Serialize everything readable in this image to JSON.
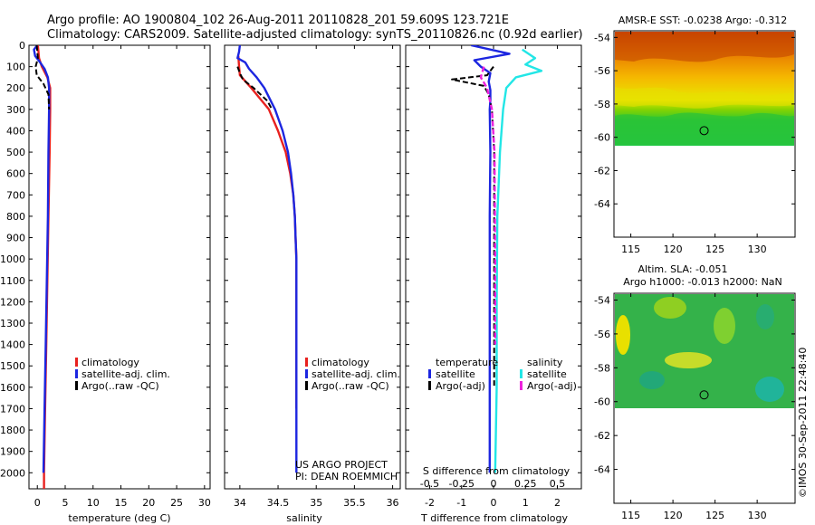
{
  "figure": {
    "title_line1": "Argo profile: AO 1900804_102 26-Aug-2011 20110828_201 59.609S 123.721E",
    "title_line2": "Climatology: CARS2009. Satellite-adjusted climatology: synTS_20110826.nc (0.92d earlier)",
    "credit": "US ARGO PROJECT",
    "pi": "PI: DEAN ROEMMICH",
    "side_label": "©IMOS 30-Sep-2011 22:48:40"
  },
  "colors": {
    "climatology": "#e8211f",
    "satellite": "#1c26e0",
    "argo": "#000000",
    "satellite_s": "#22e6e6",
    "argo_s": "#ee22dd"
  },
  "chart_data": [
    {
      "type": "line",
      "panel": "temperature",
      "xlabel": "temperature (deg C)",
      "xlim": [
        -1.5,
        31
      ],
      "xticks": [
        "0",
        "5",
        "10",
        "15",
        "20",
        "25",
        "30"
      ],
      "ylim": [
        2075,
        0
      ],
      "yticks": [
        "0",
        "100",
        "200",
        "300",
        "400",
        "500",
        "600",
        "700",
        "800",
        "900",
        "1000",
        "1100",
        "1200",
        "1300",
        "1400",
        "1500",
        "1600",
        "1700",
        "1800",
        "1900",
        "2000"
      ],
      "legend": [
        "climatology",
        "satellite-adj. clim.",
        "Argo(..raw -QC)"
      ],
      "series": [
        {
          "name": "climatology",
          "depth": [
            0,
            60,
            100,
            150,
            200,
            300,
            500,
            800,
            1100,
            1400,
            1700,
            2000,
            2075
          ],
          "values": [
            0.1,
            0.3,
            0.8,
            1.8,
            2.3,
            2.3,
            2.2,
            2.0,
            1.8,
            1.6,
            1.4,
            1.2,
            1.2
          ]
        },
        {
          "name": "satellite-adj. clim.",
          "depth": [
            0,
            20,
            50,
            80,
            110,
            150,
            200,
            300,
            500,
            800,
            1100,
            1400,
            1700,
            2000
          ],
          "values": [
            0.0,
            -0.6,
            -0.4,
            0.5,
            1.3,
            1.9,
            2.1,
            2.1,
            2.0,
            1.9,
            1.7,
            1.5,
            1.3,
            1.1
          ]
        },
        {
          "name": "Argo(..raw -QC)",
          "depth": [
            0,
            60,
            100,
            140,
            180,
            230,
            300
          ],
          "values": [
            -0.1,
            0.1,
            -0.3,
            -0.1,
            1.1,
            2.0,
            2.1
          ]
        }
      ]
    },
    {
      "type": "line",
      "panel": "salinity",
      "xlabel": "salinity",
      "xlim": [
        33.8,
        36.1
      ],
      "xticks": [
        "34",
        "34.5",
        "35",
        "35.5",
        "36"
      ],
      "ylim": [
        2075,
        0
      ],
      "legend": [
        "climatology",
        "satellite-adj. clim.",
        "Argo(..raw -QC)"
      ],
      "series": [
        {
          "name": "climatology",
          "depth": [
            50,
            100,
            140,
            200,
            300,
            400,
            500,
            600,
            700,
            800,
            900,
            1000,
            1200,
            1500,
            1700
          ],
          "values": [
            33.98,
            33.99,
            34.0,
            34.15,
            34.38,
            34.5,
            34.6,
            34.66,
            34.7,
            34.72,
            34.73,
            34.74,
            34.74,
            34.74,
            34.74
          ]
        },
        {
          "name": "satellite-adj. clim.",
          "depth": [
            0,
            30,
            60,
            80,
            110,
            150,
            200,
            300,
            400,
            500,
            600,
            700,
            800,
            900,
            1000,
            1200,
            1500,
            1800,
            2000
          ],
          "values": [
            34.0,
            33.99,
            33.97,
            34.07,
            34.12,
            34.22,
            34.32,
            34.46,
            34.56,
            34.63,
            34.67,
            34.7,
            34.72,
            34.73,
            34.74,
            34.74,
            34.74,
            34.74,
            34.74
          ]
        },
        {
          "name": "Argo(..raw -QC)",
          "depth": [
            100,
            130,
            160,
            200,
            260,
            300
          ],
          "values": [
            33.97,
            34.0,
            34.04,
            34.18,
            34.36,
            34.42
          ]
        }
      ]
    },
    {
      "type": "line",
      "panel": "difference",
      "xlabel": "T difference from climatology",
      "xlabel_top": "S difference from climatology",
      "xlim": [
        -2.75,
        2.75
      ],
      "xticks": [
        "-2",
        "-1",
        "0",
        "1",
        "2"
      ],
      "xticks_top": [
        "-0.5",
        "-0.25",
        "0",
        "0.25",
        "0.5"
      ],
      "ylim": [
        2075,
        0
      ],
      "legend_temperature_title": "temperature",
      "legend_salinity_title": "salinity",
      "legend": [
        "satellite",
        "Argo(-adj)",
        "satellite",
        "Argo(-adj)"
      ],
      "series": [
        {
          "name": "satellite",
          "depth": [
            0,
            40,
            70,
            100,
            130,
            170,
            210,
            260,
            300,
            500,
            800,
            1200,
            1600,
            2000
          ],
          "values": [
            -0.7,
            0.5,
            -0.6,
            -0.4,
            -0.1,
            -0.15,
            -0.1,
            -0.1,
            -0.12,
            -0.1,
            -0.12,
            -0.12,
            -0.12,
            -0.12
          ]
        },
        {
          "name": "Argo(-adj)",
          "depth": [
            100,
            140,
            160,
            190,
            230,
            300,
            500,
            1000,
            1600
          ],
          "values": [
            0.0,
            -0.2,
            -1.3,
            -0.3,
            -0.15,
            -0.05,
            0.02,
            0.02,
            0.02
          ]
        },
        {
          "name": "satellite",
          "depth": [
            20,
            60,
            90,
            120,
            150,
            200,
            300,
            500,
            800,
            1200,
            1600,
            2000
          ],
          "values": [
            0.9,
            1.3,
            1.0,
            1.5,
            0.7,
            0.4,
            0.3,
            0.2,
            0.12,
            0.1,
            0.1,
            0.05
          ]
        },
        {
          "name": "Argo(-adj)",
          "depth": [
            100,
            150,
            200,
            300,
            500,
            1000,
            1400
          ],
          "values": [
            -0.3,
            -0.4,
            -0.2,
            -0.05,
            0.03,
            0.05,
            0.05
          ]
        }
      ]
    },
    {
      "type": "heatmap",
      "panel": "sst_map",
      "title": "AMSR-E SST: -0.0238  Argo: -0.312",
      "xticks": [
        "115",
        "120",
        "125",
        "130"
      ],
      "yticks": [
        "-54",
        "-56",
        "-58",
        "-60",
        "-62",
        "-64"
      ],
      "xlim": [
        113,
        134.5
      ],
      "ylim": [
        -66,
        -53.6
      ],
      "marker": [
        123.7,
        -59.6
      ]
    },
    {
      "type": "heatmap",
      "panel": "sla_map",
      "title_line1": "Altim. SLA: -0.051",
      "title_line2": "Argo h1000: -0.013 h2000: NaN",
      "xticks": [
        "115",
        "120",
        "125",
        "130"
      ],
      "yticks": [
        "-54",
        "-56",
        "-58",
        "-60",
        "-62",
        "-64"
      ],
      "xlim": [
        113,
        134.5
      ],
      "ylim": [
        -66,
        -53.6
      ],
      "marker": [
        123.7,
        -59.6
      ]
    }
  ]
}
